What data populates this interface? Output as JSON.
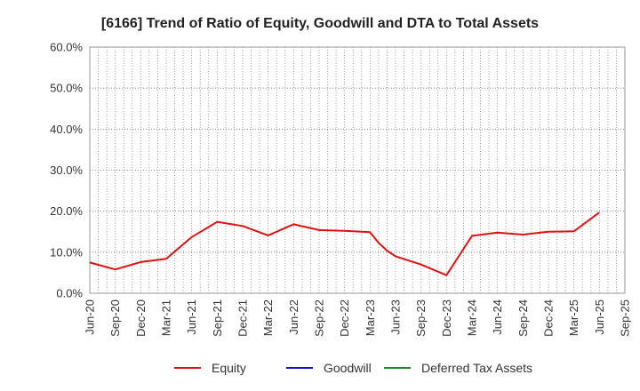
{
  "chart_data": {
    "type": "line",
    "title": "[6166]  Trend of Ratio of Equity, Goodwill and DTA to Total Assets",
    "xlabel": "",
    "ylabel": "",
    "ylim": [
      0,
      60
    ],
    "grid": true,
    "legend_position": "bottom",
    "y_ticks": [
      "0.0%",
      "10.0%",
      "20.0%",
      "30.0%",
      "40.0%",
      "50.0%",
      "60.0%"
    ],
    "x_tick_labels": [
      "Jun-20",
      "Sep-20",
      "Dec-20",
      "Mar-21",
      "Jun-21",
      "Sep-21",
      "Dec-21",
      "Mar-22",
      "Jun-22",
      "Sep-22",
      "Dec-22",
      "Mar-23",
      "Jun-23",
      "Sep-23",
      "Dec-23",
      "Mar-24",
      "Jun-24",
      "Sep-24",
      "Dec-24",
      "Mar-25",
      "Jun-25",
      "Sep-25"
    ],
    "series": [
      {
        "name": "Equity",
        "color": "#dd1111",
        "points": [
          [
            "Jun-20",
            7.5
          ],
          [
            "Sep-20",
            5.8
          ],
          [
            "Dec-20",
            7.6
          ],
          [
            "Mar-21",
            8.4
          ],
          [
            "Jun-21",
            13.7
          ],
          [
            "Sep-21",
            17.4
          ],
          [
            "Dec-21",
            16.4
          ],
          [
            "Mar-22",
            14.1
          ],
          [
            "Jun-22",
            16.8
          ],
          [
            "Sep-22",
            15.4
          ],
          [
            "Dec-22",
            15.2
          ],
          [
            "Mar-23",
            14.9
          ],
          [
            "Apr-23",
            12.3
          ],
          [
            "May-23",
            10.4
          ],
          [
            "Jun-23",
            9.0
          ],
          [
            "Sep-23",
            7.0
          ],
          [
            "Dec-23",
            4.4
          ],
          [
            "Mar-24",
            14.0
          ],
          [
            "Jun-24",
            14.8
          ],
          [
            "Sep-24",
            14.3
          ],
          [
            "Dec-24",
            15.0
          ],
          [
            "Mar-25",
            15.1
          ],
          [
            "Jun-25",
            19.7
          ]
        ]
      },
      {
        "name": "Goodwill",
        "color": "#1111cc",
        "points": []
      },
      {
        "name": "Deferred Tax Assets",
        "color": "#22882a",
        "points": []
      }
    ]
  }
}
